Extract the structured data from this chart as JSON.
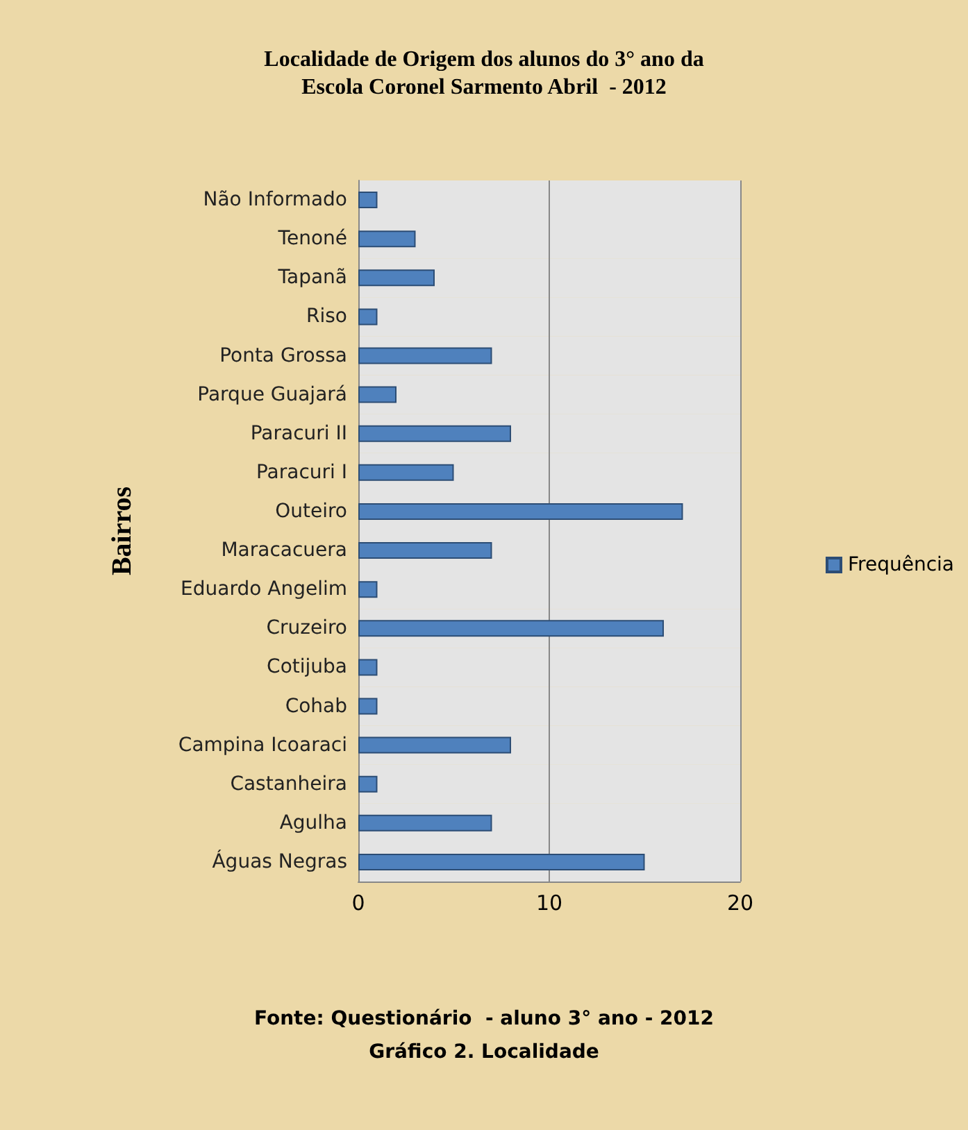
{
  "chart_data": {
    "type": "bar",
    "orientation": "horizontal",
    "title": "Localidade de Origem dos alunos do 3° ano da\nEscola Coronel Sarmento Abril  - 2012",
    "ylabel": "Bairros",
    "categories": [
      "Não Informado",
      "Tenoné",
      "Tapanã",
      "Riso",
      "Ponta Grossa",
      "Parque Guajará",
      "Paracuri II",
      "Paracuri I",
      "Outeiro",
      "Maracacuera",
      "Eduardo Angelim",
      "Cruzeiro",
      "Cotijuba",
      "Cohab",
      "Campina Icoaraci",
      "Castanheira",
      "Agulha",
      "Águas Negras"
    ],
    "series": [
      {
        "name": "Frequência",
        "color": "#4f81bd",
        "values": [
          1,
          3,
          4,
          1,
          7,
          2,
          8,
          5,
          17,
          7,
          1,
          16,
          1,
          1,
          8,
          1,
          7,
          15
        ]
      }
    ],
    "xlim": [
      0,
      20
    ],
    "xticks": [
      0,
      10,
      20
    ],
    "grid": "x",
    "legend": "right",
    "annotations": [
      "Fonte: Questionário  - aluno 3° ano - 2012",
      "Gráfico 2. Localidade"
    ]
  }
}
